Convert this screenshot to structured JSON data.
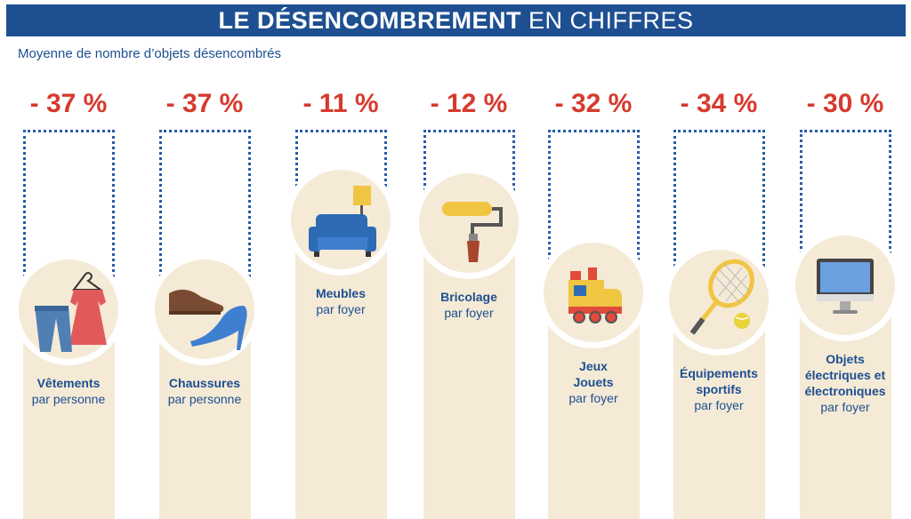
{
  "header": {
    "title_bold": "LE DÉSENCOMBREMENT",
    "title_light": "EN CHIFFRES"
  },
  "subtitle": "Moyenne de nombre d’objets désencombrés",
  "colors": {
    "banner": "#1d4f91",
    "percent": "#d63a2e",
    "bar": "#f4ead6",
    "text": "#1d4f91"
  },
  "chart_data": {
    "type": "bar",
    "title": "LE DÉSENCOMBREMENT EN CHIFFRES",
    "subtitle": "Moyenne de nombre d’objets désencombrés",
    "categories": [
      "Vêtements",
      "Chaussures",
      "Meubles",
      "Bricolage",
      "Jeux Jouets",
      "Équipements sportifs",
      "Objets électriques et électroniques"
    ],
    "values": [
      -37,
      -37,
      -11,
      -12,
      -32,
      -34,
      -30
    ],
    "value_labels": [
      "- 37 %",
      "- 37 %",
      "- 11 %",
      "- 12 %",
      "- 32 %",
      "- 34 %",
      "- 30 %"
    ],
    "units": [
      "par personne",
      "par personne",
      "par foyer",
      "par foyer",
      "par foyer",
      "par foyer",
      "par foyer"
    ],
    "icons": [
      "clothes-icon",
      "shoes-icon",
      "sofa-icon",
      "paint-roller-icon",
      "toy-train-icon",
      "tennis-racket-icon",
      "computer-monitor-icon"
    ],
    "category_lines": [
      [
        "Vêtements"
      ],
      [
        "Chaussures"
      ],
      [
        "Meubles"
      ],
      [
        "Bricolage"
      ],
      [
        "Jeux",
        "Jouets"
      ],
      [
        "Équipements",
        "sportifs"
      ],
      [
        "Objets",
        "électriques et",
        "électroniques"
      ]
    ]
  }
}
